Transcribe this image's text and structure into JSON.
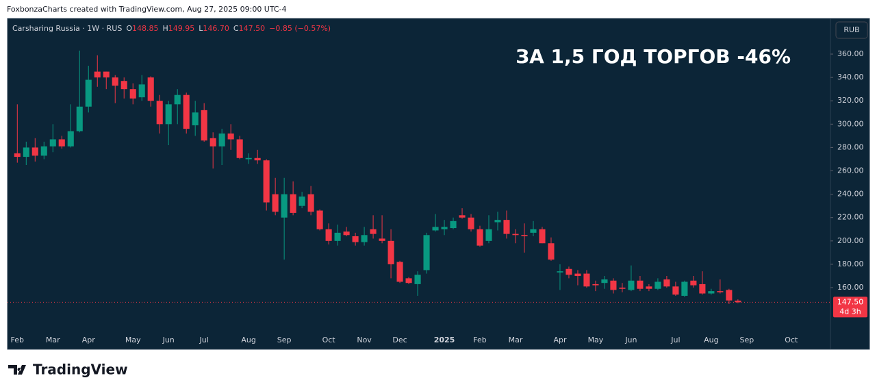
{
  "watermark": "FoxbonzaCharts created with TradingView.com, Aug 27, 2025 09:00 UTC-4",
  "footer_logo": "TradingView",
  "chart_data": {
    "type": "candlestick",
    "symbol": "Carsharing Russia · 1W · RUS",
    "ohlc_header": {
      "o_label": "O",
      "o": "148.85",
      "h_label": "H",
      "h": "149.95",
      "l_label": "L",
      "l": "146.70",
      "c_label": "C",
      "c": "147.50",
      "change": "−0.85 (−0.57%)"
    },
    "currency": "RUB",
    "annotation": "ЗА 1,5 ГОД ТОРГОВ -46%",
    "last_price_label": "147.50",
    "countdown": "4d 3h",
    "up_color": "#089981",
    "down_color": "#f23645",
    "x": [
      0,
      1,
      2,
      3,
      4,
      5,
      6,
      7,
      8,
      9,
      10,
      11,
      12,
      13,
      14,
      15,
      16,
      17,
      18,
      19,
      20,
      21,
      22,
      23,
      24,
      25,
      26,
      27,
      28,
      29,
      30,
      31,
      32,
      33,
      34,
      35,
      36,
      37,
      38,
      39,
      40,
      41,
      42,
      43,
      44,
      45,
      46,
      47,
      48,
      49,
      50,
      51,
      52,
      53,
      54,
      55,
      56,
      57,
      58,
      59,
      60,
      61,
      62,
      63,
      64,
      65,
      66,
      67,
      68,
      69,
      70,
      71,
      72,
      73,
      74,
      75,
      76,
      77,
      78,
      79,
      80,
      81
    ],
    "open": [
      275,
      272,
      280,
      273,
      281,
      287,
      281,
      294,
      315,
      345,
      345,
      340,
      337,
      330,
      323,
      340,
      320,
      300,
      317,
      325,
      299,
      312,
      288,
      281,
      292,
      287,
      270,
      271,
      269,
      240,
      220,
      240,
      230,
      240,
      226,
      210,
      200,
      208,
      204,
      199,
      210,
      202,
      200,
      182,
      168,
      163,
      175,
      209,
      210,
      211,
      222,
      220,
      210,
      200,
      216,
      218,
      206,
      205,
      207,
      210,
      198,
      173,
      176,
      172,
      172,
      163,
      164,
      166,
      160,
      158,
      166,
      161,
      159,
      167,
      161,
      153,
      166,
      163,
      155,
      157,
      158,
      148.85
    ],
    "high": [
      317,
      285,
      288,
      285,
      300,
      290,
      317,
      363,
      350,
      359,
      345,
      342,
      340,
      335,
      342,
      341,
      325,
      320,
      330,
      327,
      320,
      318,
      293,
      296,
      300,
      290,
      275,
      278,
      270,
      254,
      254,
      251,
      242,
      247,
      227,
      215,
      214,
      212,
      207,
      212,
      222,
      222,
      210,
      183,
      169,
      174,
      207,
      223,
      218,
      220,
      228,
      223,
      213,
      222,
      225,
      226,
      210,
      215,
      217,
      212,
      203,
      180,
      178,
      175,
      175,
      166,
      170,
      168,
      164,
      179,
      170,
      163,
      168,
      170,
      165,
      166,
      170,
      174,
      159,
      167,
      159,
      149.95
    ],
    "low": [
      267,
      265,
      268,
      270,
      276,
      279,
      280,
      293,
      310,
      332,
      330,
      318,
      322,
      317,
      320,
      315,
      292,
      282,
      300,
      292,
      290,
      285,
      262,
      265,
      278,
      270,
      266,
      266,
      226,
      222,
      184,
      222,
      228,
      222,
      209,
      197,
      196,
      204,
      196,
      196,
      202,
      198,
      168,
      164,
      163,
      153,
      172,
      208,
      205,
      210,
      219,
      208,
      195,
      198,
      209,
      202,
      198,
      190,
      204,
      198,
      183,
      158,
      168,
      162,
      160,
      157,
      159,
      155,
      156,
      157,
      157,
      157,
      158,
      160,
      153,
      152,
      160,
      154,
      154,
      155,
      146,
      146.7
    ],
    "close": [
      272,
      280,
      273,
      281,
      287,
      281,
      294,
      315,
      338,
      340,
      340,
      333,
      330,
      322,
      334,
      320,
      300,
      317,
      325,
      296,
      310,
      286,
      281,
      292,
      287,
      271,
      271,
      269,
      233,
      225,
      240,
      224,
      238,
      225,
      210,
      200,
      207,
      205,
      199,
      205,
      206,
      200,
      180,
      165,
      164,
      171,
      205,
      212,
      212,
      217,
      220,
      210,
      196,
      210,
      218,
      206,
      205,
      204,
      210,
      198,
      184,
      174,
      171,
      170,
      161,
      162,
      167,
      158,
      159,
      166,
      159,
      159,
      165,
      161,
      154,
      165,
      162,
      155,
      157,
      156,
      149,
      147.5
    ],
    "xlim": [
      -1.1,
      91.4
    ],
    "xticks": [
      {
        "value": 0,
        "label": "Feb"
      },
      {
        "value": 4,
        "label": "Mar"
      },
      {
        "value": 8,
        "label": "Apr"
      },
      {
        "value": 13,
        "label": "May"
      },
      {
        "value": 17,
        "label": "Jun"
      },
      {
        "value": 21,
        "label": "Jul"
      },
      {
        "value": 26,
        "label": "Aug"
      },
      {
        "value": 30,
        "label": "Sep"
      },
      {
        "value": 35,
        "label": "Oct"
      },
      {
        "value": 39,
        "label": "Nov"
      },
      {
        "value": 43,
        "label": "Dec"
      },
      {
        "value": 48,
        "label": "2025"
      },
      {
        "value": 52,
        "label": "Feb"
      },
      {
        "value": 56,
        "label": "Mar"
      },
      {
        "value": 61,
        "label": "Apr"
      },
      {
        "value": 65,
        "label": "May"
      },
      {
        "value": 69,
        "label": "Jun"
      },
      {
        "value": 74,
        "label": "Jul"
      },
      {
        "value": 78,
        "label": "Aug"
      },
      {
        "value": 82,
        "label": "Sep"
      },
      {
        "value": 87,
        "label": "Oct"
      }
    ],
    "ylim": [
      121.9,
      390.5
    ],
    "yticks": [
      {
        "value": 160,
        "label": "160.00"
      },
      {
        "value": 180,
        "label": "180.00"
      },
      {
        "value": 200,
        "label": "200.00"
      },
      {
        "value": 220,
        "label": "220.00"
      },
      {
        "value": 240,
        "label": "240.00"
      },
      {
        "value": 260,
        "label": "260.00"
      },
      {
        "value": 280,
        "label": "280.00"
      },
      {
        "value": 300,
        "label": "300.00"
      },
      {
        "value": 320,
        "label": "320.00"
      },
      {
        "value": 340,
        "label": "340.00"
      },
      {
        "value": 360,
        "label": "360.00"
      }
    ]
  }
}
